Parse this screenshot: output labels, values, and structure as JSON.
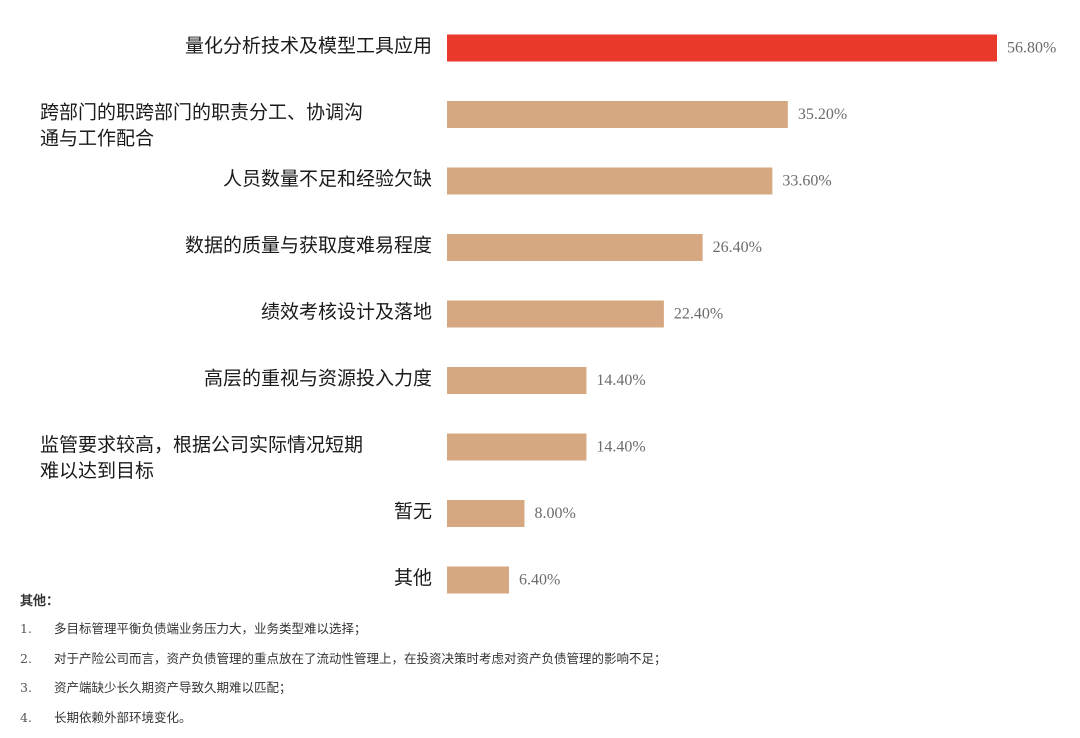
{
  "chart_data": {
    "type": "bar",
    "orientation": "horizontal",
    "categories": [
      [
        "量化分析技术及模型工具应用"
      ],
      [
        "跨部门的职跨部门的职责分工、协调沟",
        "通与工作配合"
      ],
      [
        "人员数量不足和经验欠缺"
      ],
      [
        "数据的质量与获取度难易程度"
      ],
      [
        "绩效考核设计及落地"
      ],
      [
        "高层的重视与资源投入力度"
      ],
      [
        "监管要求较高，根据公司实际情况短期",
        "难以达到目标"
      ],
      [
        "暂无"
      ],
      [
        "其他"
      ]
    ],
    "values": [
      56.8,
      35.2,
      33.6,
      26.4,
      22.4,
      14.4,
      14.4,
      8.0,
      6.4
    ],
    "value_labels": [
      "56.80%",
      "35.20%",
      "33.60%",
      "26.40%",
      "22.40%",
      "14.40%",
      "14.40%",
      "8.00%",
      "6.40%"
    ],
    "colors": [
      "#e8392b",
      "#d6a882",
      "#d6a882",
      "#d6a882",
      "#d6a882",
      "#d6a882",
      "#d6a882",
      "#d6a882",
      "#d6a882"
    ],
    "xlim": [
      0,
      56.8
    ],
    "grid": false,
    "legend": "none"
  },
  "notes": {
    "title": "其他：",
    "items": [
      {
        "num": "1.",
        "text": "多目标管理平衡负债端业务压力大，业务类型难以选择；"
      },
      {
        "num": "2.",
        "text": "对于产险公司而言，资产负债管理的重点放在了流动性管理上，在投资决策时考虑对资产负债管理的影响不足；"
      },
      {
        "num": "3.",
        "text": "资产端缺少长久期资产导致久期难以匹配；"
      },
      {
        "num": "4.",
        "text": "长期依赖外部环境变化。"
      }
    ]
  }
}
